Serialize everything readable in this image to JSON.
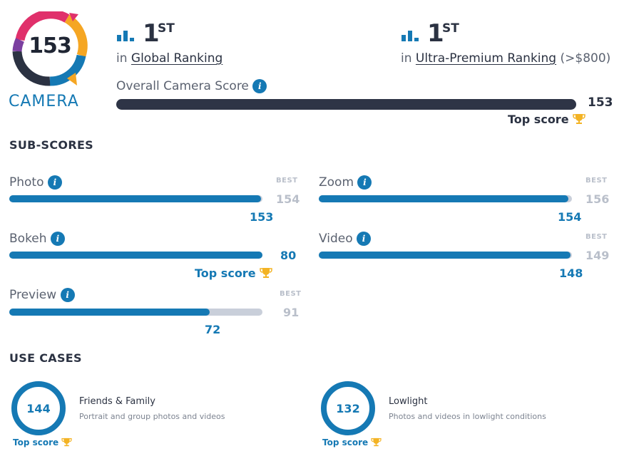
{
  "logo": {
    "score": "153",
    "label": "CAMERA",
    "colors": [
      "#e0306b",
      "#7b3fa0",
      "#f5a623",
      "#1579b4",
      "#2b3242"
    ]
  },
  "global_rank": {
    "icon": "bar-chart-icon",
    "num": "1",
    "suffix": "ST",
    "prefix": "in",
    "link": "Global Ranking"
  },
  "premium_rank": {
    "icon": "bar-chart-icon",
    "num": "1",
    "suffix": "ST",
    "prefix": "in",
    "link": "Ultra-Premium Ranking",
    "note": "(>$800)"
  },
  "overall": {
    "label": "Overall Camera Score",
    "value": "153",
    "top_label": "Top score",
    "fraction": 1.0
  },
  "subscores": {
    "title": "SUB-SCORES",
    "best_tag": "BEST",
    "items": [
      {
        "label": "Photo",
        "best": "154",
        "value": "153",
        "fraction": 0.9935
      },
      {
        "label": "Bokeh",
        "best": "80",
        "value": "",
        "top_label": "Top score",
        "fraction": 1.0
      },
      {
        "label": "Preview",
        "best": "91",
        "value": "72",
        "fraction": 0.7912
      },
      {
        "label": "Zoom",
        "best": "156",
        "value": "154",
        "fraction": 0.9872
      },
      {
        "label": "Video",
        "best": "149",
        "value": "148",
        "fraction": 0.9933
      }
    ]
  },
  "use_cases": {
    "title": "USE CASES",
    "items": [
      {
        "score": "144",
        "title": "Friends & Family",
        "desc": "Portrait and group photos and videos",
        "top_label": "Top score"
      },
      {
        "score": "132",
        "title": "Lowlight",
        "desc": "Photos and videos in lowlight conditions",
        "top_label": "Top score"
      }
    ]
  },
  "colors": {
    "accent": "#1579b4",
    "dark": "#2e3446",
    "track": "#c9cfda",
    "trophy": "#f3b324"
  }
}
